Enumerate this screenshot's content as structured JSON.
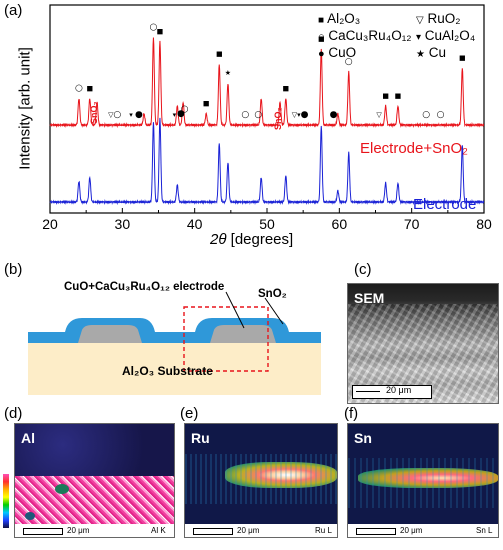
{
  "panels": {
    "a": "(a)",
    "b": "(b)",
    "c": "(c)",
    "d": "(d)",
    "e": "(e)",
    "f": "(f)"
  },
  "chart_data": {
    "type": "line",
    "xlabel_symbol": "2θ",
    "xlabel_unit": " [degrees]",
    "ylabel": "Intensity [arb. unit]",
    "xlim": [
      20,
      80
    ],
    "xticks": [
      "20",
      "30",
      "40",
      "50",
      "60",
      "70",
      "80"
    ],
    "series": [
      {
        "name": "Electrode+SnO₂",
        "color": "#e8141b",
        "baseline": 0.62,
        "peaks": [
          [
            24.0,
            0.14
          ],
          [
            25.5,
            0.14
          ],
          [
            26.5,
            0.12
          ],
          [
            33.0,
            0.06
          ],
          [
            34.3,
            0.46
          ],
          [
            35.2,
            0.44
          ],
          [
            37.6,
            0.1
          ],
          [
            38.4,
            0.12
          ],
          [
            41.6,
            0.06
          ],
          [
            43.4,
            0.32
          ],
          [
            44.6,
            0.22
          ],
          [
            49.2,
            0.14
          ],
          [
            51.8,
            0.12
          ],
          [
            52.6,
            0.14
          ],
          [
            57.5,
            0.4
          ],
          [
            59.8,
            0.06
          ],
          [
            61.3,
            0.28
          ],
          [
            66.4,
            0.1
          ],
          [
            68.1,
            0.1
          ],
          [
            77.0,
            0.3
          ]
        ]
      },
      {
        "name": "Electrode",
        "color": "#1a22d6",
        "baseline": 0.0,
        "peaks": [
          [
            24.0,
            0.11
          ],
          [
            25.5,
            0.13
          ],
          [
            34.3,
            0.42
          ],
          [
            35.2,
            0.44
          ],
          [
            37.6,
            0.09
          ],
          [
            43.4,
            0.31
          ],
          [
            44.6,
            0.21
          ],
          [
            49.2,
            0.13
          ],
          [
            52.6,
            0.14
          ],
          [
            57.5,
            0.4
          ],
          [
            59.8,
            0.06
          ],
          [
            61.3,
            0.26
          ],
          [
            66.4,
            0.1
          ],
          [
            68.1,
            0.1
          ],
          [
            77.0,
            0.3
          ]
        ]
      }
    ],
    "legend": [
      {
        "marker": "■",
        "text": "Al₂O₃"
      },
      {
        "marker": "▽",
        "text": "RuO₂"
      },
      {
        "marker": "○",
        "text": "CaCu₃Ru₄O₁₂"
      },
      {
        "marker": "▾",
        "text": "CuAl₂O₄"
      },
      {
        "marker": "●",
        "text": "CuO"
      },
      {
        "marker": "★",
        "text": "Cu"
      }
    ],
    "sno2_tags": [
      "SnO₂",
      "SnO₂"
    ]
  },
  "schematic": {
    "electrode_label": "CuO+CaCu₃Ru₄O₁₂ electrode",
    "sno2_label": "SnO₂",
    "substrate_label": "Al₂O₃ Substrate"
  },
  "sem": {
    "label": "SEM",
    "scale": "20 μm"
  },
  "maps": [
    {
      "label": "Al",
      "scale": "20 μm",
      "line": "Al K"
    },
    {
      "label": "Ru",
      "scale": "20 μm",
      "line": "Ru L"
    },
    {
      "label": "Sn",
      "scale": "20 μm",
      "line": "Sn L"
    }
  ]
}
